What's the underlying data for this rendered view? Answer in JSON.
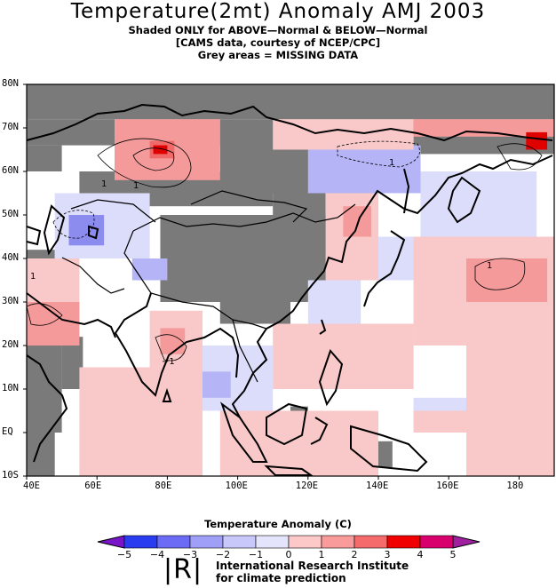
{
  "header": {
    "title": "Temperature(2mt) Anomaly AMJ 2003",
    "line1": "Shaded ONLY for ABOVE—Normal & BELOW—Normal",
    "line2": "[CAMS data, courtesy of NCEP/CPC]",
    "line3": "Grey areas = MISSING DATA"
  },
  "axes": {
    "y_labels": [
      "80N",
      "70N",
      "60N",
      "50N",
      "40N",
      "30N",
      "20N",
      "10N",
      "EQ",
      "10S"
    ],
    "x_labels": [
      "40E",
      "60E",
      "80E",
      "100E",
      "120E",
      "140E",
      "160E",
      "180"
    ],
    "lon_range": [
      40,
      190
    ],
    "lat_range": [
      -10,
      80
    ]
  },
  "contour_labels": [
    "1",
    "1",
    "−1",
    "1",
    "1",
    "1"
  ],
  "colorbar": {
    "title": "Temperature  Anomaly (C)",
    "ticks": [
      "−5",
      "−4",
      "−3",
      "−2",
      "−1",
      "0",
      "1",
      "2",
      "3",
      "4",
      "5"
    ],
    "colors": [
      "#7a14c8",
      "#2a3cf0",
      "#6b6bf5",
      "#9f9ff8",
      "#c8c8fb",
      "#e4e4fc",
      "#fcc8c8",
      "#fa9b9b",
      "#f56a6a",
      "#f00000",
      "#d8006c",
      "#a020a0"
    ]
  },
  "palette": {
    "missing": "#7a7a7a",
    "blue_light": "#dcdcfb",
    "blue_mid": "#b4b4f6",
    "blue_dark": "#8c8cee",
    "red_light": "#f9c8c8",
    "red_mid": "#f59a9a",
    "red_dark": "#f06a6a",
    "red_max": "#e00000"
  },
  "footer": {
    "logo": "|R|",
    "org_line1": "International Research Institute",
    "org_line2": "for climate prediction"
  }
}
